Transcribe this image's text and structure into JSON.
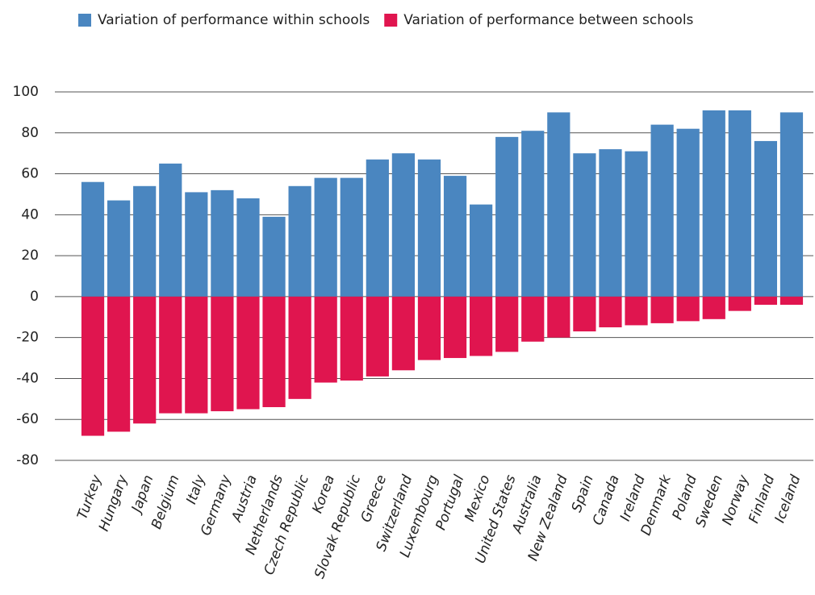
{
  "chart_data": {
    "type": "bar",
    "categories": [
      "Turkey",
      "Hungary",
      "Japan",
      "Belgium",
      "Italy",
      "Germany",
      "Austria",
      "Netherlands",
      "Czech Republic",
      "Korea",
      "Slovak Republic",
      "Greece",
      "Switzerland",
      "Luxembourg",
      "Portugal",
      "Mexico",
      "United States",
      "Australia",
      "New Zealand",
      "Spain",
      "Canada",
      "Ireland",
      "Denmark",
      "Poland",
      "Sweden",
      "Norway",
      "Finland",
      "Iceland"
    ],
    "series": [
      {
        "name": "Variation of performance within schools",
        "color": "#4a86c0",
        "values": [
          56,
          47,
          54,
          65,
          51,
          52,
          48,
          39,
          54,
          58,
          58,
          67,
          70,
          67,
          59,
          45,
          78,
          81,
          90,
          70,
          72,
          71,
          84,
          82,
          91,
          91,
          76,
          90
        ]
      },
      {
        "name": "Variation of performance between schools",
        "color": "#e0154f",
        "values": [
          -68,
          -66,
          -62,
          -57,
          -57,
          -56,
          -55,
          -54,
          -50,
          -42,
          -41,
          -39,
          -36,
          -31,
          -30,
          -29,
          -27,
          -22,
          -20,
          -17,
          -15,
          -14,
          -13,
          -12,
          -11,
          -7,
          -4,
          -4
        ]
      }
    ],
    "ylim": [
      -80,
      100
    ],
    "yticks": [
      -80,
      -60,
      -40,
      -20,
      0,
      20,
      40,
      60,
      80,
      100
    ],
    "grid": true,
    "legend": "top"
  }
}
